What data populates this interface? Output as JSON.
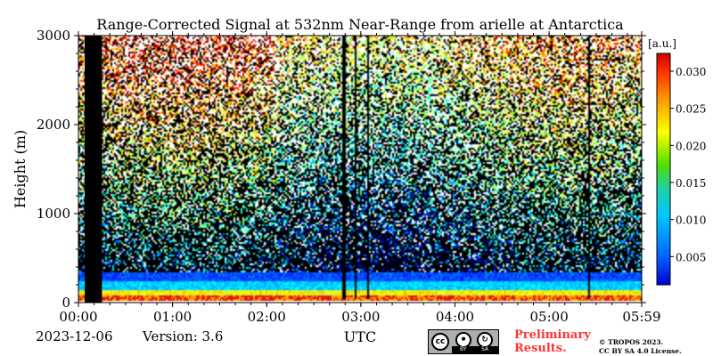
{
  "chart_data": {
    "type": "heatmap",
    "title": "Range-Corrected Signal at 532nm Near-Range from arielle at Antarctica",
    "xlabel": "UTC",
    "ylabel": "Height (m)",
    "x_ticks": [
      "00:00",
      "01:00",
      "02:00",
      "03:00",
      "04:00",
      "05:00",
      "05:59"
    ],
    "x_range": [
      "00:00",
      "05:59"
    ],
    "y_ticks": [
      "0",
      "1000",
      "2000",
      "3000"
    ],
    "y_tick_values": [
      0,
      1000,
      2000,
      3000
    ],
    "ylim": [
      0,
      3000
    ],
    "colorbar": {
      "unit": "[a.u.]",
      "ticks": [
        "0.005",
        "0.010",
        "0.015",
        "0.020",
        "0.025",
        "0.030"
      ],
      "tick_values": [
        0.005,
        0.01,
        0.015,
        0.02,
        0.025,
        0.03
      ],
      "range": [
        0.0012,
        0.0324
      ],
      "colormap": "jet"
    },
    "no_data_interval": [
      "00:04",
      "00:15"
    ],
    "grid": false
  },
  "footer": {
    "date": "2023-12-06",
    "version": "Version: 3.6",
    "preliminary_line1": "Preliminary",
    "preliminary_line2": "Results.",
    "copyright_line1": "© TROPOS 2023.",
    "copyright_line2": "CC BY SA 4.0 License.",
    "license_badge": {
      "cc": "cc",
      "by": "BY",
      "sa": "SA"
    }
  },
  "colors": {
    "preliminary": "#ff3333",
    "no_data": "#000000",
    "sensor_gap": "#000000"
  }
}
